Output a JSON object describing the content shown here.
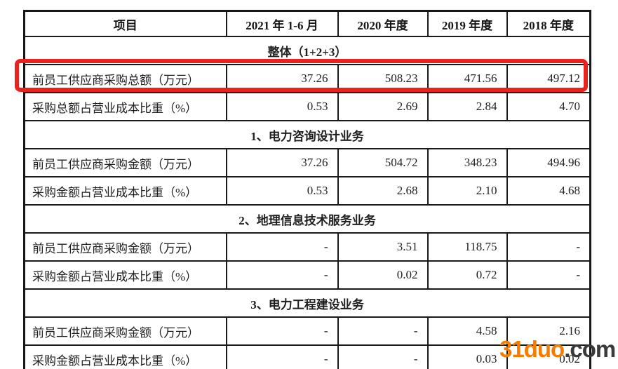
{
  "table": {
    "columns": [
      "项目",
      "2021 年 1-6 月",
      "2020 年度",
      "2019 年度",
      "2018 年度"
    ],
    "sections": [
      {
        "title": "整体（1+2+3）",
        "rows": [
          {
            "label": "前员工供应商采购总额（万元）",
            "values": [
              "37.26",
              "508.23",
              "471.56",
              "497.12"
            ],
            "highlighted": true
          },
          {
            "label": "采购总额占营业成本比重（%）",
            "values": [
              "0.53",
              "2.69",
              "2.84",
              "4.70"
            ],
            "highlighted": false
          }
        ]
      },
      {
        "title": "1、电力咨询设计业务",
        "rows": [
          {
            "label": "前员工供应商采购金额（万元）",
            "values": [
              "37.26",
              "504.72",
              "348.23",
              "494.96"
            ],
            "highlighted": false
          },
          {
            "label": "采购金额占营业成本比重（%）",
            "values": [
              "0.53",
              "2.68",
              "2.10",
              "4.68"
            ],
            "highlighted": false
          }
        ]
      },
      {
        "title": "2、地理信息技术服务业务",
        "rows": [
          {
            "label": "前员工供应商采购金额（万元）",
            "values": [
              "-",
              "3.51",
              "118.75",
              "-"
            ],
            "highlighted": false
          },
          {
            "label": "采购金额占营业成本比重（%）",
            "values": [
              "-",
              "0.02",
              "0.72",
              "-"
            ],
            "highlighted": false
          }
        ]
      },
      {
        "title": "3、电力工程建设业务",
        "rows": [
          {
            "label": "前员工供应商采购金额（万元）",
            "values": [
              "-",
              "-",
              "4.58",
              "2.16"
            ],
            "highlighted": false
          },
          {
            "label": "采购金额占营业成本比重（%）",
            "values": [
              "-",
              "-",
              "0.03",
              "0.02"
            ],
            "highlighted": false
          }
        ]
      }
    ]
  },
  "highlight": {
    "color": "#e8231d"
  },
  "watermark": {
    "brand": "31duo",
    "tld": ".com",
    "brand_color": "#f57c00",
    "tld_color": "#3a3a3a"
  }
}
